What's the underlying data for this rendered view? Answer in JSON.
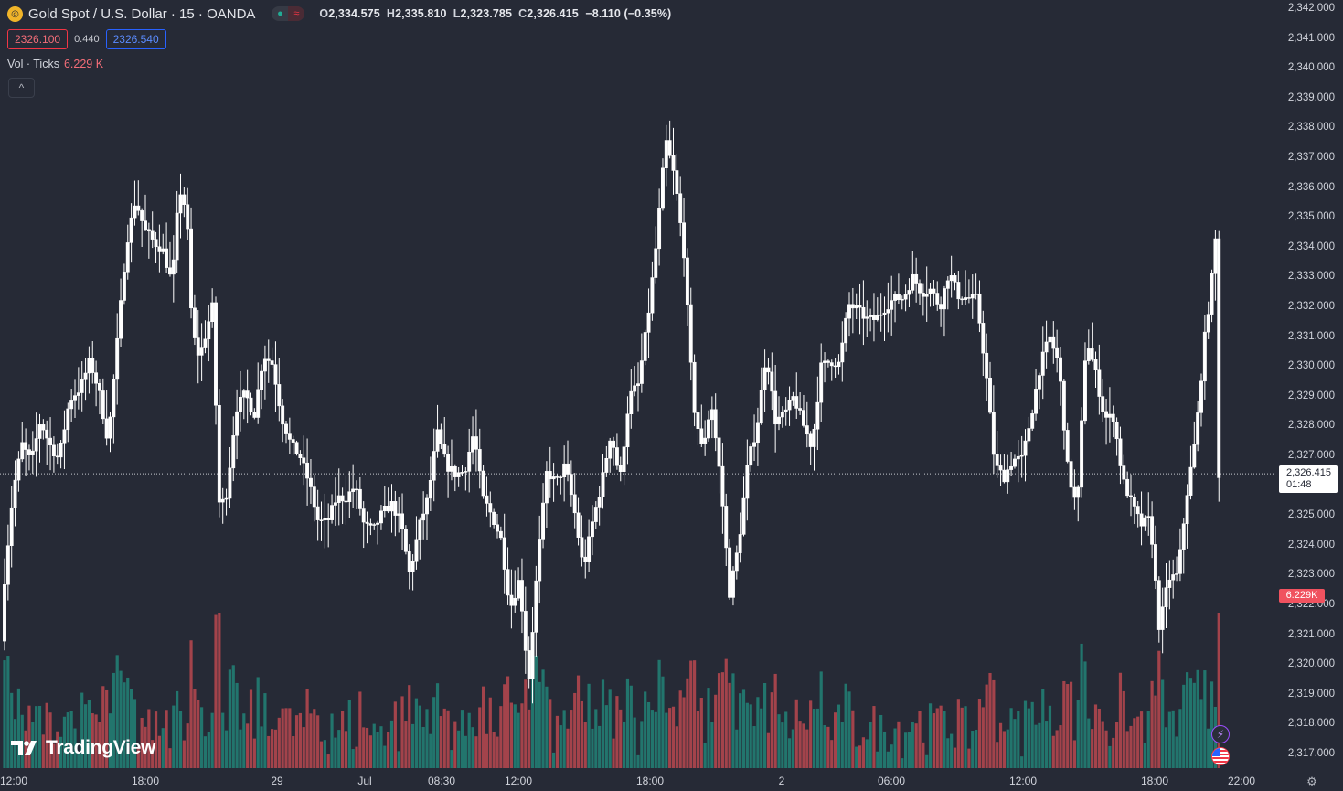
{
  "header": {
    "logo_symbol": "gold-coin-icon",
    "title": "Gold Spot / U.S. Dollar · 15 · OANDA",
    "status_market": "●",
    "status_delay": "≈",
    "ohlc": {
      "o_label": "O",
      "o": "2,334.575",
      "h_label": "H",
      "h": "2,335.810",
      "l_label": "L",
      "l": "2,323.785",
      "c_label": "C",
      "c": "2,326.415",
      "change": "−8.110 (−0.35%)"
    },
    "bid": "2326.100",
    "spread": "0.440",
    "ask": "2326.540"
  },
  "volume_legend": {
    "label": "Vol · Ticks",
    "value": "6.229 K"
  },
  "collapse_label": "^",
  "price_axis": {
    "labels": [
      "2,342.000",
      "2,341.000",
      "2,340.000",
      "2,339.000",
      "2,338.000",
      "2,337.000",
      "2,336.000",
      "2,335.000",
      "2,334.000",
      "2,333.000",
      "2,332.000",
      "2,331.000",
      "2,330.000",
      "2,329.000",
      "2,328.000",
      "2,327.000",
      "2,325.000",
      "2,324.000",
      "2,323.000",
      "2,322.000",
      "2,321.000",
      "2,320.000",
      "2,319.000",
      "2,318.000",
      "2,317.000"
    ],
    "last_price": "2,326.415",
    "countdown": "01:48",
    "volume_tag": "6.229K"
  },
  "time_axis": {
    "labels": [
      "12:00",
      "18:00",
      "29",
      "Jul",
      "08:30",
      "12:00",
      "18:00",
      "2",
      "06:00",
      "12:00",
      "18:00",
      "22:00"
    ]
  },
  "branding": {
    "text": "TradingView"
  },
  "colors": {
    "background": "#262a36",
    "candle": "#ffffff",
    "vol_up": "#22756d",
    "vol_down": "#a3434b",
    "accent_red": "#f23645",
    "accent_blue": "#2962ff"
  },
  "chart_data": {
    "type": "candlestick",
    "symbol": "Gold Spot / U.S. Dollar",
    "interval": "15",
    "exchange": "OANDA",
    "ylim": [
      2316.7,
      2342.2
    ],
    "close_points": [
      [
        0,
        2320.8
      ],
      [
        8,
        2322.6
      ],
      [
        18,
        2325.8
      ],
      [
        28,
        2327.4
      ],
      [
        38,
        2326.8
      ],
      [
        48,
        2328.2
      ],
      [
        58,
        2327.4
      ],
      [
        68,
        2326.9
      ],
      [
        80,
        2328.9
      ],
      [
        92,
        2329.3
      ],
      [
        102,
        2330.2
      ],
      [
        112,
        2329.2
      ],
      [
        122,
        2327.5
      ],
      [
        132,
        2330.8
      ],
      [
        142,
        2334.1
      ],
      [
        152,
        2335.6
      ],
      [
        162,
        2334.6
      ],
      [
        172,
        2334.2
      ],
      [
        182,
        2333.9
      ],
      [
        192,
        2332.8
      ],
      [
        200,
        2336.0
      ],
      [
        208,
        2335.2
      ],
      [
        214,
        2331.2
      ],
      [
        222,
        2330.3
      ],
      [
        228,
        2331.0
      ],
      [
        236,
        2332.0
      ],
      [
        244,
        2325.2
      ],
      [
        252,
        2325.8
      ],
      [
        262,
        2328.6
      ],
      [
        272,
        2329.1
      ],
      [
        282,
        2328.4
      ],
      [
        292,
        2330.4
      ],
      [
        302,
        2330.1
      ],
      [
        312,
        2328.3
      ],
      [
        322,
        2327.4
      ],
      [
        332,
        2327.0
      ],
      [
        342,
        2326.1
      ],
      [
        352,
        2324.8
      ],
      [
        362,
        2324.8
      ],
      [
        372,
        2325.6
      ],
      [
        382,
        2325.6
      ],
      [
        392,
        2326.0
      ],
      [
        402,
        2324.7
      ],
      [
        412,
        2324.5
      ],
      [
        422,
        2325.1
      ],
      [
        432,
        2325.4
      ],
      [
        442,
        2324.8
      ],
      [
        452,
        2323.0
      ],
      [
        462,
        2324.6
      ],
      [
        472,
        2325.6
      ],
      [
        482,
        2327.8
      ],
      [
        492,
        2326.7
      ],
      [
        502,
        2326.4
      ],
      [
        512,
        2326.5
      ],
      [
        522,
        2327.8
      ],
      [
        532,
        2325.6
      ],
      [
        542,
        2325.0
      ],
      [
        552,
        2324.2
      ],
      [
        562,
        2321.9
      ],
      [
        572,
        2322.9
      ],
      [
        582,
        2319.4
      ],
      [
        592,
        2323.5
      ],
      [
        602,
        2326.5
      ],
      [
        612,
        2326.1
      ],
      [
        622,
        2326.7
      ],
      [
        632,
        2325.2
      ],
      [
        642,
        2323.2
      ],
      [
        652,
        2324.8
      ],
      [
        662,
        2326.1
      ],
      [
        672,
        2327.8
      ],
      [
        682,
        2326.2
      ],
      [
        692,
        2329.0
      ],
      [
        702,
        2329.4
      ],
      [
        712,
        2331.5
      ],
      [
        722,
        2334.2
      ],
      [
        732,
        2337.6
      ],
      [
        742,
        2336.3
      ],
      [
        752,
        2333.8
      ],
      [
        762,
        2328.8
      ],
      [
        772,
        2327.2
      ],
      [
        782,
        2328.8
      ],
      [
        792,
        2326.2
      ],
      [
        802,
        2322.4
      ],
      [
        812,
        2324.1
      ],
      [
        822,
        2326.8
      ],
      [
        832,
        2328.0
      ],
      [
        842,
        2330.5
      ],
      [
        852,
        2328.2
      ],
      [
        862,
        2328.4
      ],
      [
        872,
        2329.0
      ],
      [
        882,
        2328.1
      ],
      [
        892,
        2327.3
      ],
      [
        902,
        2330.0
      ],
      [
        912,
        2330.2
      ],
      [
        922,
        2330.1
      ],
      [
        932,
        2332.1
      ],
      [
        942,
        2331.9
      ],
      [
        952,
        2331.6
      ],
      [
        962,
        2331.6
      ],
      [
        972,
        2332.0
      ],
      [
        982,
        2332.3
      ],
      [
        992,
        2332.3
      ],
      [
        1002,
        2333.0
      ],
      [
        1012,
        2332.5
      ],
      [
        1022,
        2332.6
      ],
      [
        1032,
        2332.0
      ],
      [
        1042,
        2333.2
      ],
      [
        1052,
        2332.4
      ],
      [
        1062,
        2332.3
      ],
      [
        1072,
        2332.3
      ],
      [
        1082,
        2329.9
      ],
      [
        1092,
        2326.7
      ],
      [
        1102,
        2326.3
      ],
      [
        1112,
        2326.9
      ],
      [
        1122,
        2326.9
      ],
      [
        1132,
        2328.4
      ],
      [
        1142,
        2330.1
      ],
      [
        1152,
        2331.0
      ],
      [
        1162,
        2330.1
      ],
      [
        1172,
        2326.5
      ],
      [
        1182,
        2325.2
      ],
      [
        1192,
        2331.0
      ],
      [
        1202,
        2329.8
      ],
      [
        1212,
        2328.3
      ],
      [
        1222,
        2328.3
      ],
      [
        1232,
        2326.2
      ],
      [
        1242,
        2325.4
      ],
      [
        1252,
        2324.7
      ],
      [
        1262,
        2324.9
      ],
      [
        1272,
        2321.2
      ],
      [
        1282,
        2322.9
      ],
      [
        1292,
        2323.0
      ],
      [
        1302,
        2325.7
      ],
      [
        1312,
        2327.7
      ],
      [
        1322,
        2331.1
      ],
      [
        1328,
        2332.5
      ],
      [
        1334,
        2334.5
      ],
      [
        1337,
        2326.4
      ]
    ],
    "last_close": 2326.415,
    "volume_max_label": "6.229K"
  }
}
